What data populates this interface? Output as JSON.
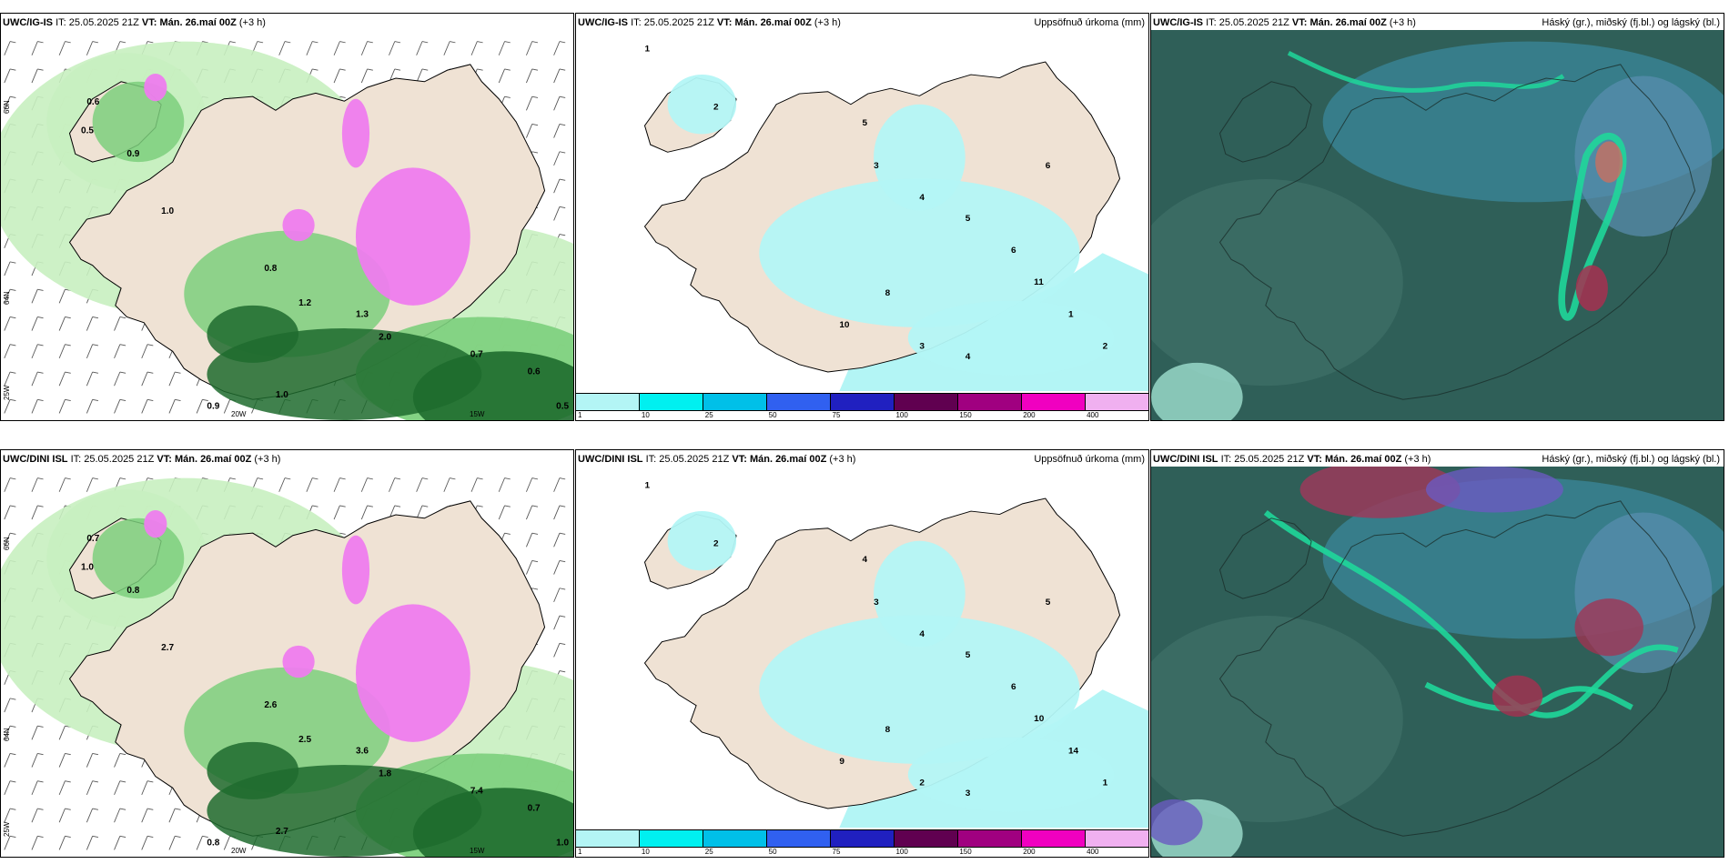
{
  "panels": [
    {
      "model": "UWC/IG-IS",
      "init_prefix": "IT:",
      "init_time": "25.05.2025 21Z",
      "valid_prefix": "VT:",
      "valid_time": "Mán. 26.maí 00Z",
      "lead": "(+3 h)",
      "right_title": ""
    },
    {
      "model": "UWC/IG-IS",
      "init_prefix": "IT:",
      "init_time": "25.05.2025 21Z",
      "valid_prefix": "VT:",
      "valid_time": "Mán. 26.maí 00Z",
      "lead": "(+3 h)",
      "right_title": "Uppsöfnuð úrkoma (mm)"
    },
    {
      "model": "UWC/IG-IS",
      "init_prefix": "IT:",
      "init_time": "25.05.2025 21Z",
      "valid_prefix": "VT:",
      "valid_time": "Mán. 26.maí 00Z",
      "lead": "(+3 h)",
      "right_title": "Háský (gr.), miðský (fj.bl.) og lágský (bl.)"
    },
    {
      "model": "UWC/DINI ISL",
      "init_prefix": "IT:",
      "init_time": "25.05.2025 21Z",
      "valid_prefix": "VT:",
      "valid_time": "Mán. 26.maí 00Z",
      "lead": "(+3 h)",
      "right_title": ""
    },
    {
      "model": "UWC/DINI ISL",
      "init_prefix": "IT:",
      "init_time": "25.05.2025 21Z",
      "valid_prefix": "VT:",
      "valid_time": "Mán. 26.maí 00Z",
      "lead": "(+3 h)",
      "right_title": "Uppsöfnuð úrkoma (mm)"
    },
    {
      "model": "UWC/DINI ISL",
      "init_prefix": "IT:",
      "init_time": "25.05.2025 21Z",
      "valid_prefix": "VT:",
      "valid_time": "Mán. 26.maí 00Z",
      "lead": "(+3 h)",
      "right_title": "Háský (gr.), miðský (fj.bl.) og lágský (bl.)"
    }
  ],
  "grid_labels": {
    "lat": [
      "66N",
      "64N",
      "25W"
    ],
    "lon": [
      "20W",
      "15W"
    ]
  },
  "precip_colorbar": {
    "colors": [
      "#b3f5f5",
      "#00f0f0",
      "#00c0e8",
      "#3060f0",
      "#2020c0",
      "#600050",
      "#a00080",
      "#f000c0",
      "#f0b0f0"
    ],
    "labels": [
      "1",
      "10",
      "25",
      "50",
      "75",
      "100",
      "150",
      "200",
      "400"
    ]
  },
  "map_colors": {
    "land": "#efe2d4",
    "precip_light": "#b3f5f5",
    "green_light": "#c8f0c0",
    "green_mid": "#7ccf7c",
    "green_dark": "#1e6b2e",
    "magenta": "#ee7cee",
    "cloud_base": "#2f5f58",
    "cloud_high": "#1fd79a",
    "cloud_mid": "#3a8aa0"
  },
  "rain_map_numbers_top": [
    "1",
    "2",
    "3",
    "4",
    "5",
    "6",
    "8",
    "10",
    "11"
  ],
  "rain_map_numbers_bottom": [
    "1",
    "2",
    "3",
    "4",
    "5",
    "6",
    "8",
    "9",
    "10",
    "14"
  ],
  "green_map_numbers_top": [
    "0.6",
    "0.5",
    "0.9",
    "1.0",
    "0.8",
    "1.2",
    "1.3",
    "2.0",
    "0.7"
  ],
  "green_map_numbers_bottom": [
    "0.7",
    "1.0",
    "0.8",
    "2.7",
    "2.6",
    "2.5",
    "3.6",
    "1.8",
    "7.4"
  ]
}
